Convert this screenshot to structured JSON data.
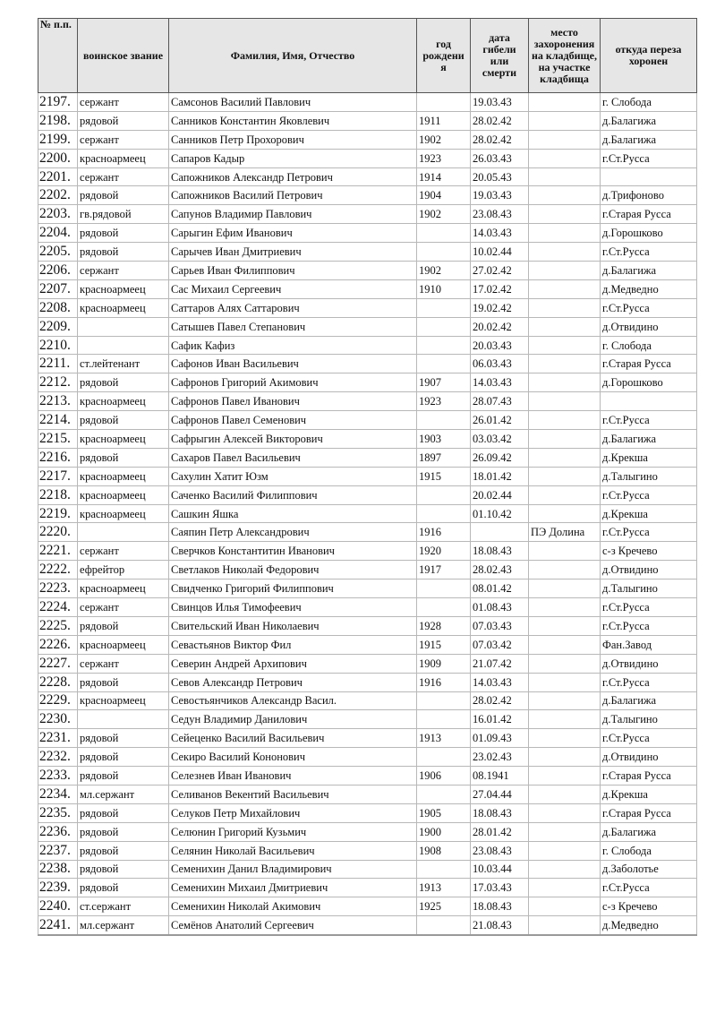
{
  "header": {
    "num": "№ п.п.",
    "rank": "воинское звание",
    "name": "Фамилия, Имя, Отчество",
    "year": "год рождени я",
    "date": "дата гибели или смерти",
    "place": "место захоронения на кладбище, на участке кладбища",
    "from": "откуда переза хоронен"
  },
  "rows": [
    [
      "2197.",
      "сержант",
      "Самсонов Василий Павлович",
      "",
      "19.03.43",
      "",
      "г. Слобода"
    ],
    [
      "2198.",
      "рядовой",
      "Санников Константин Яковлевич",
      "1911",
      "28.02.42",
      "",
      "д.Балагижа"
    ],
    [
      "2199.",
      "сержант",
      "Санников Петр Прохорович",
      "1902",
      "28.02.42",
      "",
      "д.Балагижа"
    ],
    [
      "2200.",
      "красноармеец",
      "Сапаров Кадыр",
      "1923",
      "26.03.43",
      "",
      "г.Ст.Русса"
    ],
    [
      "2201.",
      "сержант",
      "Сапожников Александр Петрович",
      "1914",
      "20.05.43",
      "",
      ""
    ],
    [
      "2202.",
      "рядовой",
      "Сапожников Василий Петрович",
      "1904",
      "19.03.43",
      "",
      "д.Трифоново"
    ],
    [
      "2203.",
      "гв.рядовой",
      "Сапунов Владимир Павлович",
      "1902",
      "23.08.43",
      "",
      "г.Старая Русса"
    ],
    [
      "2204.",
      "рядовой",
      "Сарыгин Ефим Иванович",
      "",
      "14.03.43",
      "",
      "д.Горошково"
    ],
    [
      "2205.",
      "рядовой",
      "Сарычев Иван Дмитриевич",
      "",
      "10.02.44",
      "",
      "г.Ст.Русса"
    ],
    [
      "2206.",
      "сержант",
      "Сарьев Иван Филиппович",
      "1902",
      "27.02.42",
      "",
      "д.Балагижа"
    ],
    [
      "2207.",
      "красноармеец",
      "Сас Михаил Сергеевич",
      "1910",
      "17.02.42",
      "",
      "д.Медведно"
    ],
    [
      "2208.",
      "красноармеец",
      "Саттаров Алях Саттарович",
      "",
      "19.02.42",
      "",
      "г.Ст.Русса"
    ],
    [
      "2209.",
      "",
      "Сатышев Павел Степанович",
      "",
      "20.02.42",
      "",
      "д.Отвидино"
    ],
    [
      "2210.",
      "",
      "Сафик Кафиз",
      "",
      "20.03.43",
      "",
      "г. Слобода"
    ],
    [
      "2211.",
      "ст.лейтенант",
      "Сафонов Иван Васильевич",
      "",
      "06.03.43",
      "",
      "г.Старая Русса"
    ],
    [
      "2212.",
      "рядовой",
      "Сафронов Григорий Акимович",
      "1907",
      "14.03.43",
      "",
      "д.Горошково"
    ],
    [
      "2213.",
      "красноармеец",
      "Сафронов Павел Иванович",
      "1923",
      "28.07.43",
      "",
      ""
    ],
    [
      "2214.",
      "рядовой",
      "Сафронов Павел Семенович",
      "",
      "26.01.42",
      "",
      "г.Ст.Русса"
    ],
    [
      "2215.",
      "красноармеец",
      "Сафрыгин Алексей Викторович",
      "1903",
      "03.03.42",
      "",
      "д.Балагижа"
    ],
    [
      "2216.",
      "рядовой",
      "Сахаров Павел Васильевич",
      "1897",
      "26.09.42",
      "",
      "д.Крекша"
    ],
    [
      "2217.",
      "красноармеец",
      "Сахулин Хатит Юзм",
      "1915",
      "18.01.42",
      "",
      "д.Талыгино"
    ],
    [
      "2218.",
      "красноармеец",
      "Саченко Василий Филиппович",
      "",
      "20.02.44",
      "",
      "г.Ст.Русса"
    ],
    [
      "2219.",
      "красноармеец",
      "Сашкин Яшка",
      "",
      "01.10.42",
      "",
      "д.Крекша"
    ],
    [
      "2220.",
      "",
      "Саяпин Петр Александрович",
      "1916",
      "",
      "ПЭ Долина",
      "г.Ст.Русса"
    ],
    [
      "2221.",
      "сержант",
      "Сверчков Константитин Иванович",
      "1920",
      "18.08.43",
      "",
      "с-з Кречево"
    ],
    [
      "2222.",
      "ефрейтор",
      "Светлаков Николай Федорович",
      "1917",
      "28.02.43",
      "",
      "д.Отвидино"
    ],
    [
      "2223.",
      "красноармеец",
      "Свидченко Григорий Филиппович",
      "",
      "08.01.42",
      "",
      "д.Талыгино"
    ],
    [
      "2224.",
      "сержант",
      "Свинцов Илья Тимофеевич",
      "",
      "01.08.43",
      "",
      "г.Ст.Русса"
    ],
    [
      "2225.",
      "рядовой",
      "Свительский Иван Николаевич",
      "1928",
      "07.03.43",
      "",
      "г.Ст.Русса"
    ],
    [
      "2226.",
      "красноармеец",
      "Севастьянов Виктор Фил",
      "1915",
      "07.03.42",
      "",
      "Фан.Завод"
    ],
    [
      "2227.",
      "сержант",
      "Северин Андрей Архипович",
      "1909",
      "21.07.42",
      "",
      "д.Отвидино"
    ],
    [
      "2228.",
      "рядовой",
      "Севов Александр Петрович",
      "1916",
      "14.03.43",
      "",
      "г.Ст.Русса"
    ],
    [
      "2229.",
      "красноармеец",
      "Севостьянчиков Александр Васил.",
      "",
      "28.02.42",
      "",
      "д.Балагижа"
    ],
    [
      "2230.",
      "",
      "Седун Владимир Данилович",
      "",
      "16.01.42",
      "",
      "д.Талыгино"
    ],
    [
      "2231.",
      "рядовой",
      "Сейеценко Василий Васильевич",
      "1913",
      "01.09.43",
      "",
      "г.Ст.Русса"
    ],
    [
      "2232.",
      "рядовой",
      "Секиро Василий Кононович",
      "",
      "23.02.43",
      "",
      "д.Отвидино"
    ],
    [
      "2233.",
      "рядовой",
      "Селезнев Иван Иванович",
      "1906",
      "08.1941",
      "",
      "г.Старая Русса"
    ],
    [
      "2234.",
      "мл.сержант",
      "Селиванов Векентий Васильевич",
      "",
      "27.04.44",
      "",
      "д.Крекша"
    ],
    [
      "2235.",
      "рядовой",
      "Селуков Петр Михайлович",
      "1905",
      "18.08.43",
      "",
      "г.Старая Русса"
    ],
    [
      "2236.",
      "рядовой",
      "Селюнин Григорий Кузьмич",
      "1900",
      "28.01.42",
      "",
      "д.Балагижа"
    ],
    [
      "2237.",
      "рядовой",
      "Селянин Николай Васильевич",
      "1908",
      "23.08.43",
      "",
      "г. Слобода"
    ],
    [
      "2238.",
      "рядовой",
      "Семенихин Данил Владимирович",
      "",
      "10.03.44",
      "",
      "д.Заболотье"
    ],
    [
      "2239.",
      "рядовой",
      "Семенихин Михаил Дмитриевич",
      "1913",
      "17.03.43",
      "",
      "г.Ст.Русса"
    ],
    [
      "2240.",
      "ст.сержант",
      "Семенихин Николай Акимович",
      "1925",
      "18.08.43",
      "",
      "с-з Кречево"
    ],
    [
      "2241.",
      "мл.сержант",
      "Семёнов Анатолий Сергеевич",
      "",
      "21.08.43",
      "",
      "д.Медведно"
    ]
  ]
}
